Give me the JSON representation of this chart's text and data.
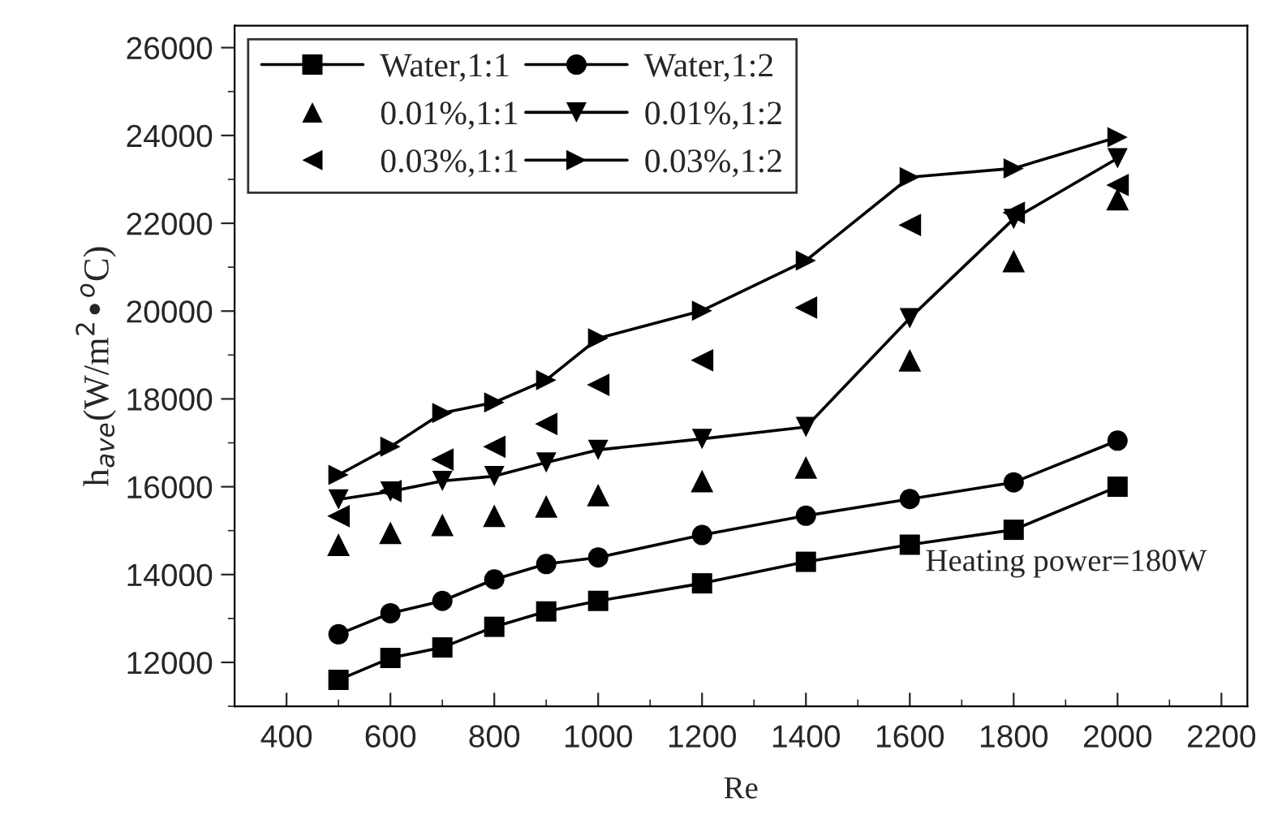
{
  "chart_data": {
    "type": "line",
    "xlabel": "Re",
    "ylabel": "h$_{ave}$(W/m$^{2}$•$^{o}$C)",
    "x": [
      500,
      600,
      700,
      800,
      900,
      1000,
      1200,
      1400,
      1600,
      1800,
      2000
    ],
    "series": [
      {
        "name": "Water,1:1",
        "color": "#000000",
        "marker": "square",
        "line_style": "solid",
        "values": [
          11600,
          12100,
          12340,
          12810,
          13160,
          13400,
          13800,
          14290,
          14680,
          15020,
          16000
        ]
      },
      {
        "name": "Water,1:2",
        "color": "#000000",
        "marker": "circle",
        "line_style": "solid",
        "values": [
          12640,
          13120,
          13400,
          13890,
          14240,
          14390,
          14900,
          15340,
          15720,
          16100,
          17050
        ]
      },
      {
        "name": "0.01%,1:1",
        "color": "#000000",
        "type": "scatter",
        "marker": "triangle",
        "values": [
          14680,
          14950,
          15130,
          15340,
          15550,
          15810,
          16130,
          16440,
          18880,
          21140,
          22550
        ]
      },
      {
        "name": "0.01%,1:2",
        "color": "#000000",
        "marker": "triangle_down",
        "line_style": "solid",
        "values": [
          15710,
          15890,
          16130,
          16240,
          16550,
          16840,
          17090,
          17360,
          19840,
          22100,
          23480
        ]
      },
      {
        "name": "0.03%,1:1",
        "color": "#000000",
        "type": "scatter",
        "marker": "triangle_left",
        "values": [
          15330,
          15900,
          16620,
          16910,
          17430,
          18320,
          18880,
          20080,
          21960,
          22240,
          22870
        ]
      },
      {
        "name": "0.03%,1:2",
        "color": "#000000",
        "marker": "triangle_right",
        "line_style": "solid",
        "values": [
          16270,
          16910,
          17680,
          17920,
          18430,
          19380,
          20010,
          21150,
          23050,
          23250,
          23960
        ]
      }
    ],
    "xlim": [
      300,
      2250
    ],
    "xticks": [
      400,
      600,
      800,
      1000,
      1200,
      1400,
      1600,
      1800,
      2000,
      2200
    ],
    "ylim": [
      11000,
      26500
    ],
    "yticks": [
      12000,
      14000,
      16000,
      18000,
      20000,
      22000,
      24000,
      26000
    ],
    "annotations": [
      "Heating power=180W"
    ],
    "legend": "top left",
    "grid": false
  }
}
